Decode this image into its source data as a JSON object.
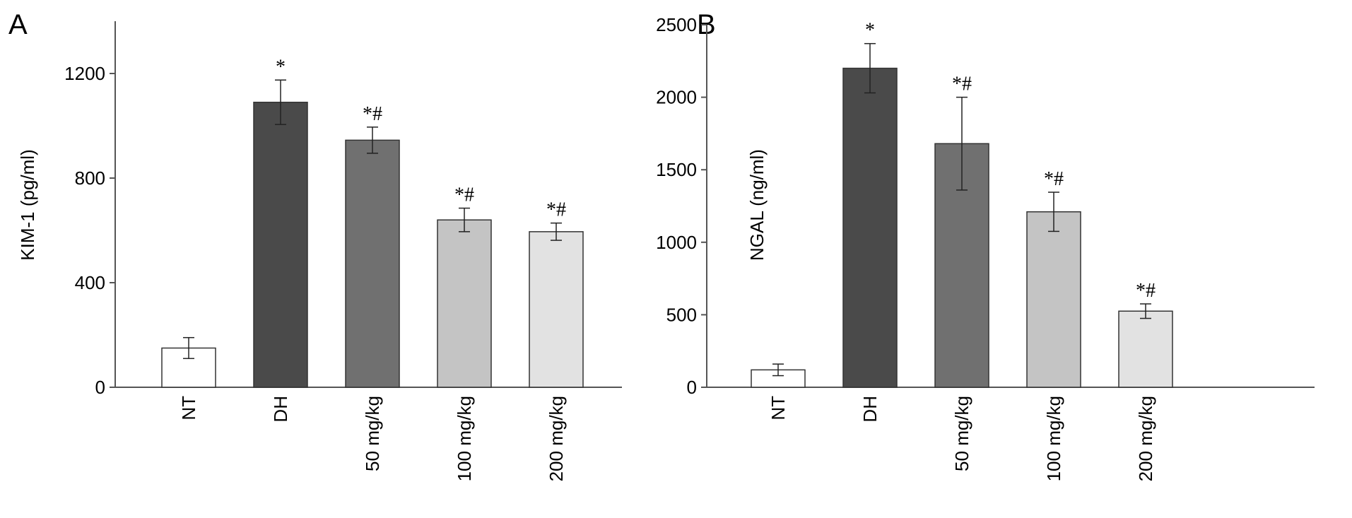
{
  "chart_data": [
    {
      "panel": "A",
      "type": "bar",
      "ylabel": "KIM-1 (pg/ml)",
      "ylim": [
        0,
        1400
      ],
      "yticks": [
        "0",
        "400",
        "800",
        "1200"
      ],
      "categories": [
        "NT",
        "DH",
        "50 mg/kg",
        "100 mg/kg",
        "200 mg/kg"
      ],
      "values": [
        150,
        1090,
        945,
        640,
        595
      ],
      "errors": [
        40,
        85,
        50,
        45,
        33
      ],
      "annotations": [
        "",
        "*",
        "*#",
        "*#",
        "*#"
      ],
      "colors": [
        "#ffffff",
        "#4a4a4a",
        "#707070",
        "#c4c4c4",
        "#e2e2e2"
      ]
    },
    {
      "panel": "B",
      "type": "bar",
      "ylabel": "NGAL (ng/ml)",
      "ylim": [
        0,
        2500
      ],
      "yticks": [
        "0",
        "500",
        "1000",
        "1500",
        "2000",
        "2500"
      ],
      "categories": [
        "NT",
        "DH",
        "50 mg/kg",
        "100 mg/kg",
        "200 mg/kg"
      ],
      "values": [
        120,
        2200,
        1680,
        1210,
        525
      ],
      "errors": [
        40,
        170,
        320,
        135,
        50
      ],
      "annotations": [
        "",
        "*",
        "*#",
        "*#",
        "*#"
      ],
      "colors": [
        "#ffffff",
        "#4a4a4a",
        "#707070",
        "#c4c4c4",
        "#e2e2e2"
      ]
    }
  ]
}
